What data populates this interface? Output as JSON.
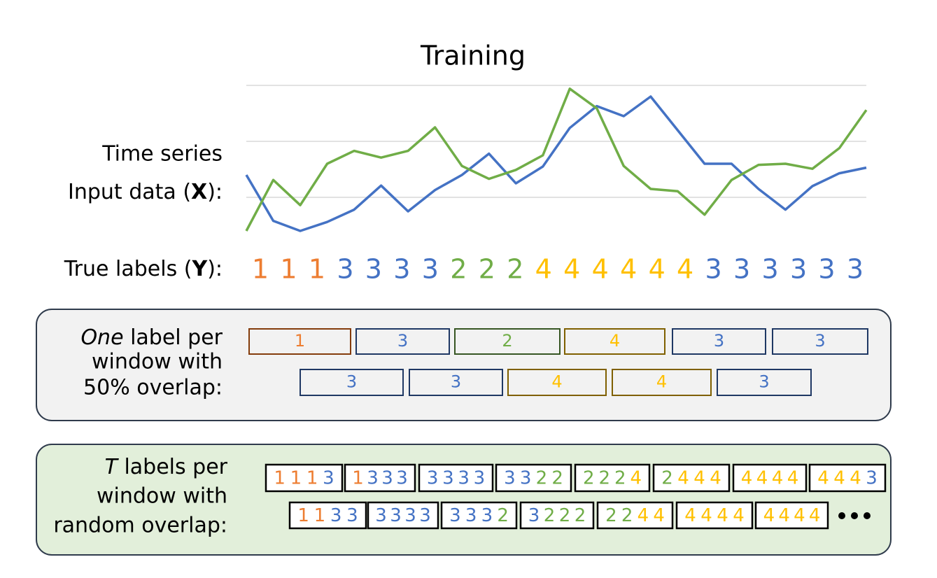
{
  "title": "Training",
  "input_label": {
    "line1": "Time series",
    "line2": [
      "Input data (",
      "X",
      "):"
    ]
  },
  "chart_data": {
    "type": "line",
    "ylim": [
      0.4,
      3.0
    ],
    "yticks": [
      1,
      2,
      3
    ],
    "grid": true,
    "series": [
      {
        "color": "#4472c4",
        "values": [
          1.4,
          0.58,
          0.4,
          0.56,
          0.78,
          1.21,
          0.75,
          1.13,
          1.4,
          1.78,
          1.25,
          1.55,
          2.24,
          2.63,
          2.45,
          2.8,
          2.2,
          1.6,
          1.6,
          1.15,
          0.78,
          1.2,
          1.43,
          1.53
        ]
      },
      {
        "color": "#70ad47",
        "values": [
          0.4,
          1.31,
          0.86,
          1.6,
          1.83,
          1.71,
          1.83,
          2.25,
          1.56,
          1.33,
          1.49,
          1.75,
          2.94,
          2.59,
          1.56,
          1.15,
          1.11,
          0.69,
          1.31,
          1.58,
          1.6,
          1.51,
          1.88,
          2.56
        ]
      }
    ]
  },
  "true_labels": {
    "caption": [
      "True labels (",
      "Y",
      "):"
    ],
    "labels": [
      "1",
      "1",
      "1",
      "3",
      "3",
      "3",
      "3",
      "2",
      "2",
      "2",
      "4",
      "4",
      "4",
      "4",
      "4",
      "4",
      "3",
      "3",
      "3",
      "3",
      "3",
      "3"
    ]
  },
  "label_colors": {
    "1": "#ed7d31",
    "2": "#70ad47",
    "3": "#4472c4",
    "4": "#ffc000"
  },
  "box_colors": {
    "1": "#843c0c",
    "2": "#375623",
    "3": "#1f3864",
    "4": "#7f6000"
  },
  "one_label": {
    "caption": [
      [
        "One",
        " label per"
      ],
      "window with",
      "50% overlap:"
    ],
    "rows": [
      [
        "1",
        "3",
        "2",
        "4",
        "3",
        "3"
      ],
      [
        "3",
        "3",
        "4",
        "4",
        "3"
      ]
    ]
  },
  "t_labels": {
    "caption": [
      [
        "T",
        " labels per"
      ],
      "window with",
      "random overlap:"
    ],
    "rows": [
      [
        [
          "1",
          "1",
          "1",
          "3"
        ],
        [
          "1",
          "3",
          "3",
          "3"
        ],
        [
          "3",
          "3",
          "3",
          "3"
        ],
        [
          "3",
          "3",
          "2",
          "2"
        ],
        [
          "2",
          "2",
          "2",
          "4"
        ],
        [
          "2",
          "4",
          "4",
          "4"
        ],
        [
          "4",
          "4",
          "4",
          "4"
        ],
        [
          "4",
          "4",
          "4",
          "3"
        ]
      ],
      [
        [
          "1",
          "1",
          "3",
          "3"
        ],
        [
          "3",
          "3",
          "3",
          "3"
        ],
        [
          "3",
          "3",
          "3",
          "2"
        ],
        [
          "3",
          "2",
          "2",
          "2"
        ],
        [
          "2",
          "2",
          "4",
          "4"
        ],
        [
          "4",
          "4",
          "4",
          "4"
        ],
        [
          "4",
          "4",
          "4",
          "4"
        ]
      ]
    ]
  }
}
